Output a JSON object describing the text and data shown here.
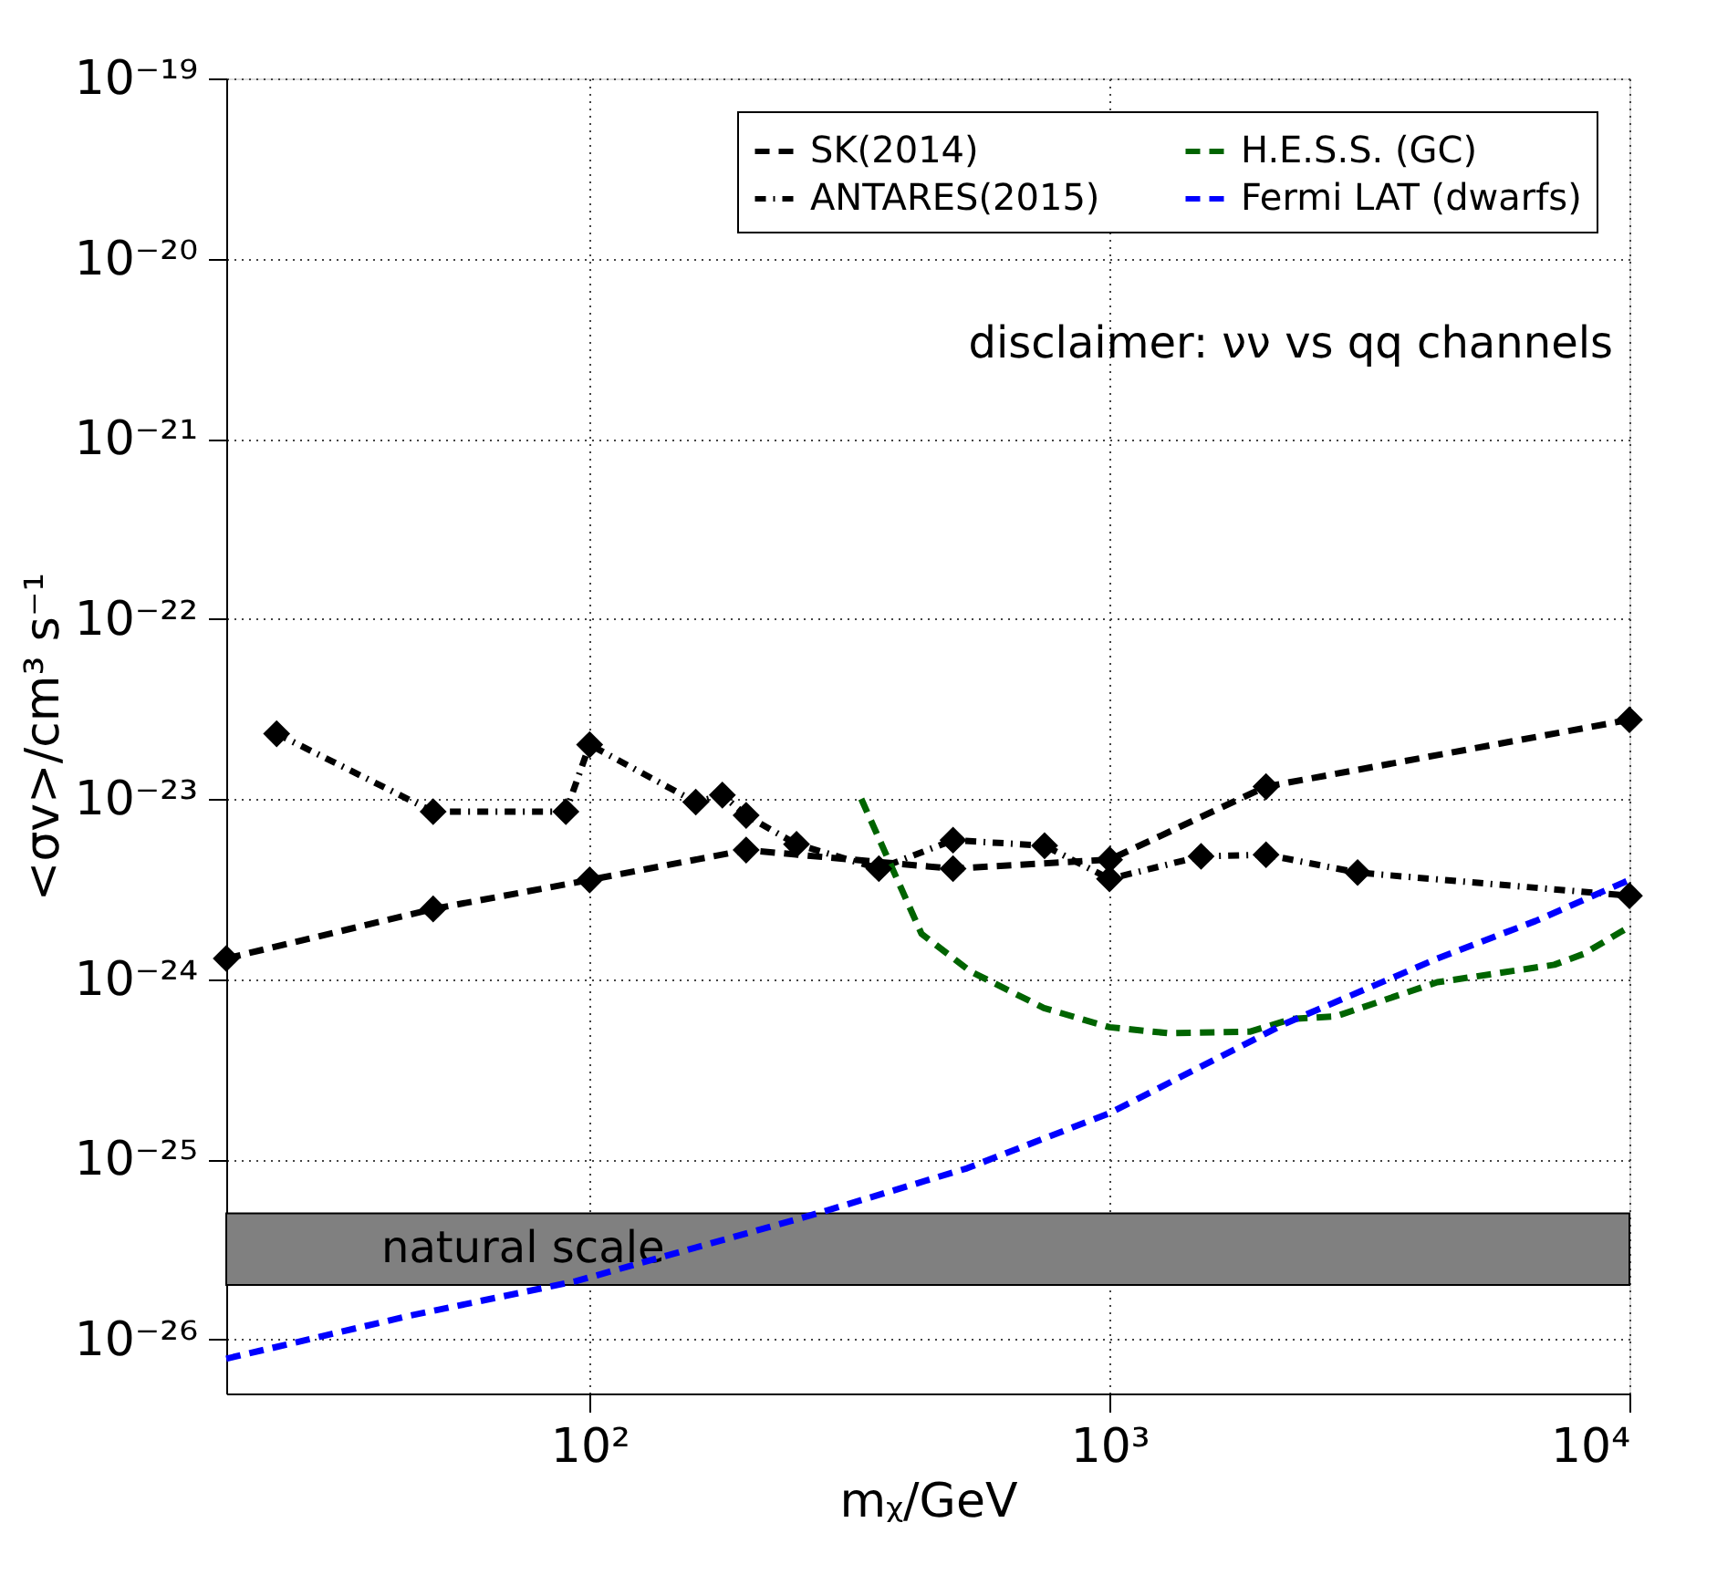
{
  "chart_data": {
    "type": "line",
    "xlabel": "mᵪ/GeV",
    "ylabel": "<σv>/cm³ s⁻¹",
    "log": "xy",
    "grid": true,
    "legend": "top right",
    "xlim": [
      20,
      10000
    ],
    "ylim": [
      5e-27,
      1e-19
    ],
    "xticks": [
      {
        "value": 100,
        "label": "10²"
      },
      {
        "value": 1000,
        "label": "10³"
      },
      {
        "value": 10000,
        "label": "10⁴"
      }
    ],
    "yticks": [
      {
        "value": 1e-26,
        "label": "10⁻²⁶"
      },
      {
        "value": 1e-25,
        "label": "10⁻²⁵"
      },
      {
        "value": 1e-24,
        "label": "10⁻²⁴"
      },
      {
        "value": 1e-23,
        "label": "10⁻²³"
      },
      {
        "value": 1e-22,
        "label": "10⁻²²"
      },
      {
        "value": 1e-21,
        "label": "10⁻²¹"
      },
      {
        "value": 1e-20,
        "label": "10⁻²⁰"
      },
      {
        "value": 1e-19,
        "label": "10⁻¹⁹"
      }
    ],
    "series": [
      {
        "name": "SK(2014)",
        "color": "#000000",
        "marker": "diamond",
        "line_style": "dashed",
        "x": [
          20,
          50,
          100,
          200,
          500,
          1000,
          2000,
          10000
        ],
        "values": [
          1.3e-24,
          2.45e-24,
          3.55e-24,
          5.2e-24,
          4.1e-24,
          4.6e-24,
          1.17e-23,
          2.75e-23
        ]
      },
      {
        "name": "ANTARES(2015)",
        "color": "#000000",
        "marker": "diamond",
        "line_style": "dotted",
        "x": [
          25,
          50,
          90,
          100,
          160,
          180,
          200,
          250,
          360,
          500,
          750,
          1000,
          1500,
          2000,
          3000,
          10000
        ],
        "values": [
          2.3e-23,
          8.5e-24,
          8.5e-24,
          2e-23,
          9.6e-24,
          1.05e-23,
          8.1e-24,
          5.6e-24,
          4.1e-24,
          5.9e-24,
          5.5e-24,
          3.6e-24,
          4.8e-24,
          4.9e-24,
          3.9e-24,
          2.9e-24
        ]
      },
      {
        "name": "H.E.S.S. (GC)",
        "color": "#006400",
        "marker": "none",
        "line_style": "dashed",
        "x": [
          333,
          435,
          541,
          748,
          1000,
          1300,
          1860,
          2245,
          2720,
          4270,
          7170,
          8170,
          10000
        ],
        "values": [
          1e-23,
          1.78e-24,
          1.1e-24,
          6.9e-25,
          5.4e-25,
          5e-25,
          5.1e-25,
          6e-25,
          6.2e-25,
          9.6e-25,
          1.2e-24,
          1.38e-24,
          1.95e-24
        ]
      },
      {
        "name": "Fermi LAT (dwarfs)",
        "color": "#0000ff",
        "marker": "none",
        "line_style": "dashed",
        "x": [
          20,
          45,
          94,
          268,
          532,
          1000,
          2190,
          4270,
          6600,
          10000
        ],
        "values": [
          7.8e-27,
          1.35e-26,
          2.1e-26,
          4.9e-26,
          8.9e-26,
          1.8e-25,
          5.7e-25,
          1.3e-24,
          2.1e-24,
          3.55e-24
        ]
      }
    ],
    "bands": [
      {
        "axis": "y",
        "from": 2e-26,
        "to": 5e-26,
        "label": "natural scale",
        "color": "#808080"
      }
    ],
    "annotations": [
      "disclaimer: νν vs qq channels"
    ]
  }
}
